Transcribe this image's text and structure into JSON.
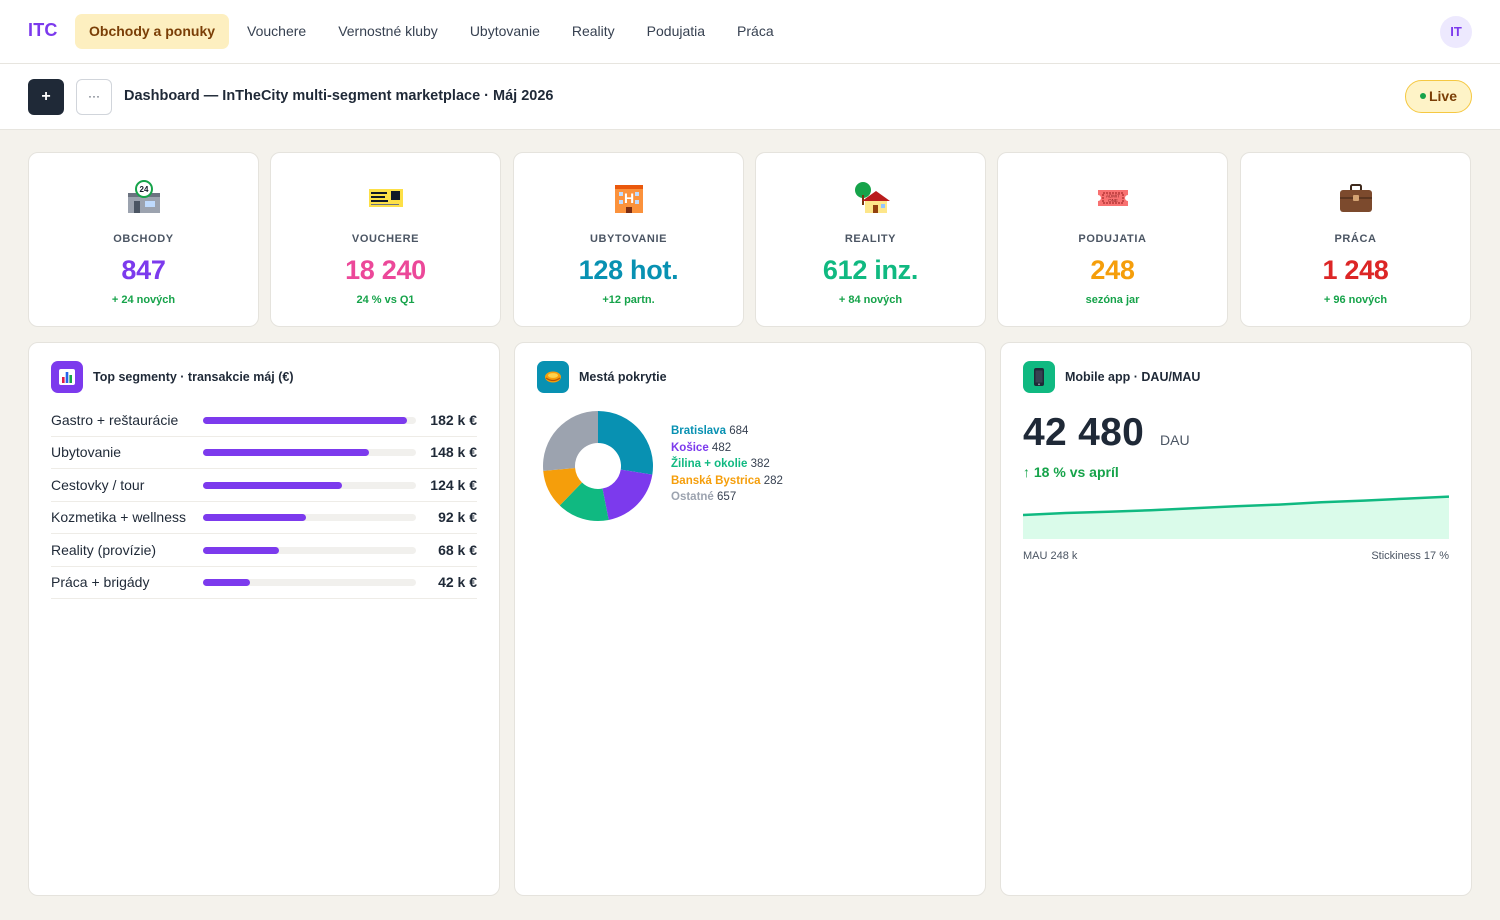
{
  "nav": {
    "logo": "ITC",
    "items": [
      {
        "label": "Obchody a ponuky",
        "active": true
      },
      {
        "label": "Vouchere"
      },
      {
        "label": "Vernostné kluby"
      },
      {
        "label": "Ubytovanie"
      },
      {
        "label": "Reality"
      },
      {
        "label": "Podujatia"
      },
      {
        "label": "Práca"
      }
    ],
    "avatar": "IT"
  },
  "toolbar": {
    "add_label": "+",
    "more_label": "···",
    "title": "Dashboard — InTheCity multi-segment marketplace · Máj 2026",
    "live_label": "Live"
  },
  "kpis": [
    {
      "icon": "24h-store-icon",
      "label": "OBCHODY",
      "value": "847",
      "sub": "+ 24 nových",
      "color": "#7c3aed"
    },
    {
      "icon": "ticket-voucher-icon",
      "label": "VOUCHERE",
      "value": "18 240",
      "sub": "24 % vs Q1",
      "color": "#ec4899"
    },
    {
      "icon": "hotel-icon",
      "label": "UBYTOVANIE",
      "value": "128 hot.",
      "sub": "+12 partn.",
      "color": "#0891b2"
    },
    {
      "icon": "house-icon",
      "label": "REALITY",
      "value": "612 inz.",
      "sub": "+ 84 nových",
      "color": "#10b981"
    },
    {
      "icon": "admission-ticket-icon",
      "label": "PODUJATIA",
      "value": "248",
      "sub": "sezóna jar",
      "color": "#f59e0b"
    },
    {
      "icon": "briefcase-icon",
      "label": "PRÁCA",
      "value": "1 248",
      "sub": "+ 96 nových",
      "color": "#dc2626"
    }
  ],
  "segments": {
    "title": "Top segmenty · transakcie máj (€)",
    "icon": "bar-chart-icon",
    "rows": [
      {
        "label": "Gastro + reštaurácie",
        "value": 182,
        "display": "182 k €"
      },
      {
        "label": "Ubytovanie",
        "value": 148,
        "display": "148 k €"
      },
      {
        "label": "Cestovky / tour",
        "value": 124,
        "display": "124 k €"
      },
      {
        "label": "Kozmetika + wellness",
        "value": 92,
        "display": "92 k €"
      },
      {
        "label": "Reality (provízie)",
        "value": 68,
        "display": "68 k €"
      },
      {
        "label": "Práca + brigády",
        "value": 42,
        "display": "42 k €"
      }
    ],
    "max": 190
  },
  "cities": {
    "title": "Mestá pokrytie",
    "icon": "globe-icon",
    "chart_data": {
      "type": "pie",
      "categories": [
        "Bratislava",
        "Košice",
        "Žilina + okolie",
        "Banská Bystrica",
        "Ostatné"
      ],
      "values": [
        684,
        482,
        382,
        282,
        657
      ],
      "colors": [
        "#0891b2",
        "#7c3aed",
        "#10b981",
        "#f59e0b",
        "#9ca3af"
      ],
      "donut": true
    }
  },
  "mobile": {
    "title": "Mobile app · DAU/MAU",
    "icon": "mobile-phone-icon",
    "dau": "42 480",
    "dau_unit": "DAU",
    "delta": "↑ 18 % vs apríl",
    "mau": "MAU 248 k",
    "stickiness": "Stickiness 17 %",
    "chart_data": {
      "type": "area",
      "x": [
        0,
        1,
        2,
        3,
        4,
        5,
        6,
        7,
        8,
        9,
        10
      ],
      "values": [
        30,
        32.5,
        34,
        36,
        38.5,
        41,
        43,
        46,
        48,
        50.5,
        53
      ],
      "ylim": [
        0,
        60
      ],
      "color": "#10b981"
    }
  }
}
